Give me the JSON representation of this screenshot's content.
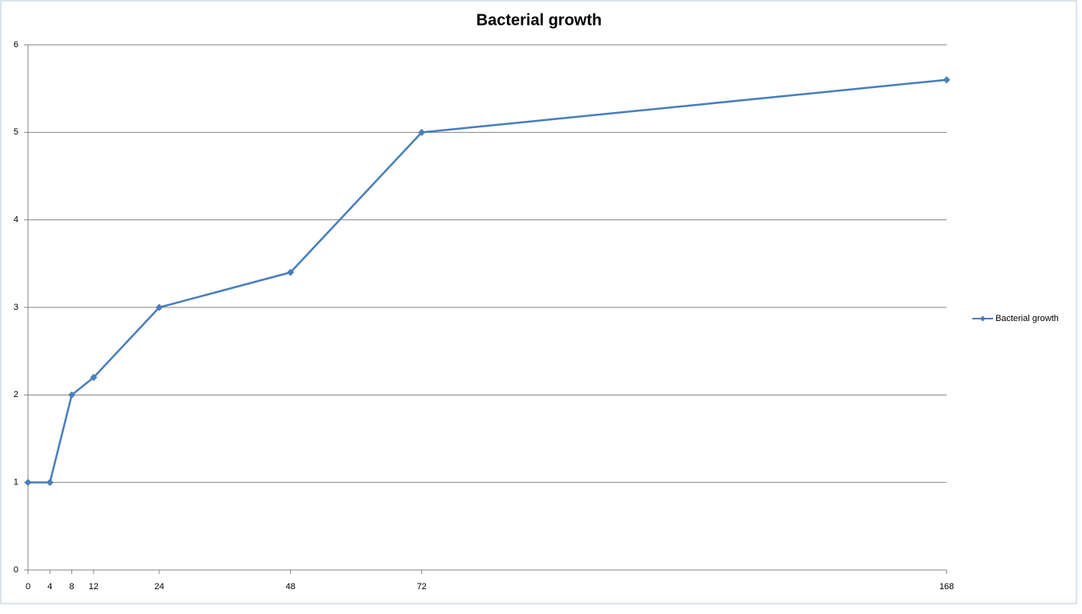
{
  "chart_data": {
    "type": "line",
    "title": "Bacterial growth",
    "x": [
      0,
      4,
      8,
      12,
      24,
      48,
      72,
      168
    ],
    "series": [
      {
        "name": "Bacterial growth",
        "color": "#4a7ebb",
        "values": [
          1,
          1,
          2,
          2.2,
          3,
          3.4,
          5,
          5.6
        ]
      }
    ],
    "xlim": [
      0,
      168
    ],
    "xticks": [
      0,
      4,
      8,
      12,
      24,
      48,
      72,
      168
    ],
    "ylim": [
      0,
      6
    ],
    "yticks": [
      0,
      1,
      2,
      3,
      4,
      5,
      6
    ],
    "grid": true,
    "legend": "right"
  }
}
